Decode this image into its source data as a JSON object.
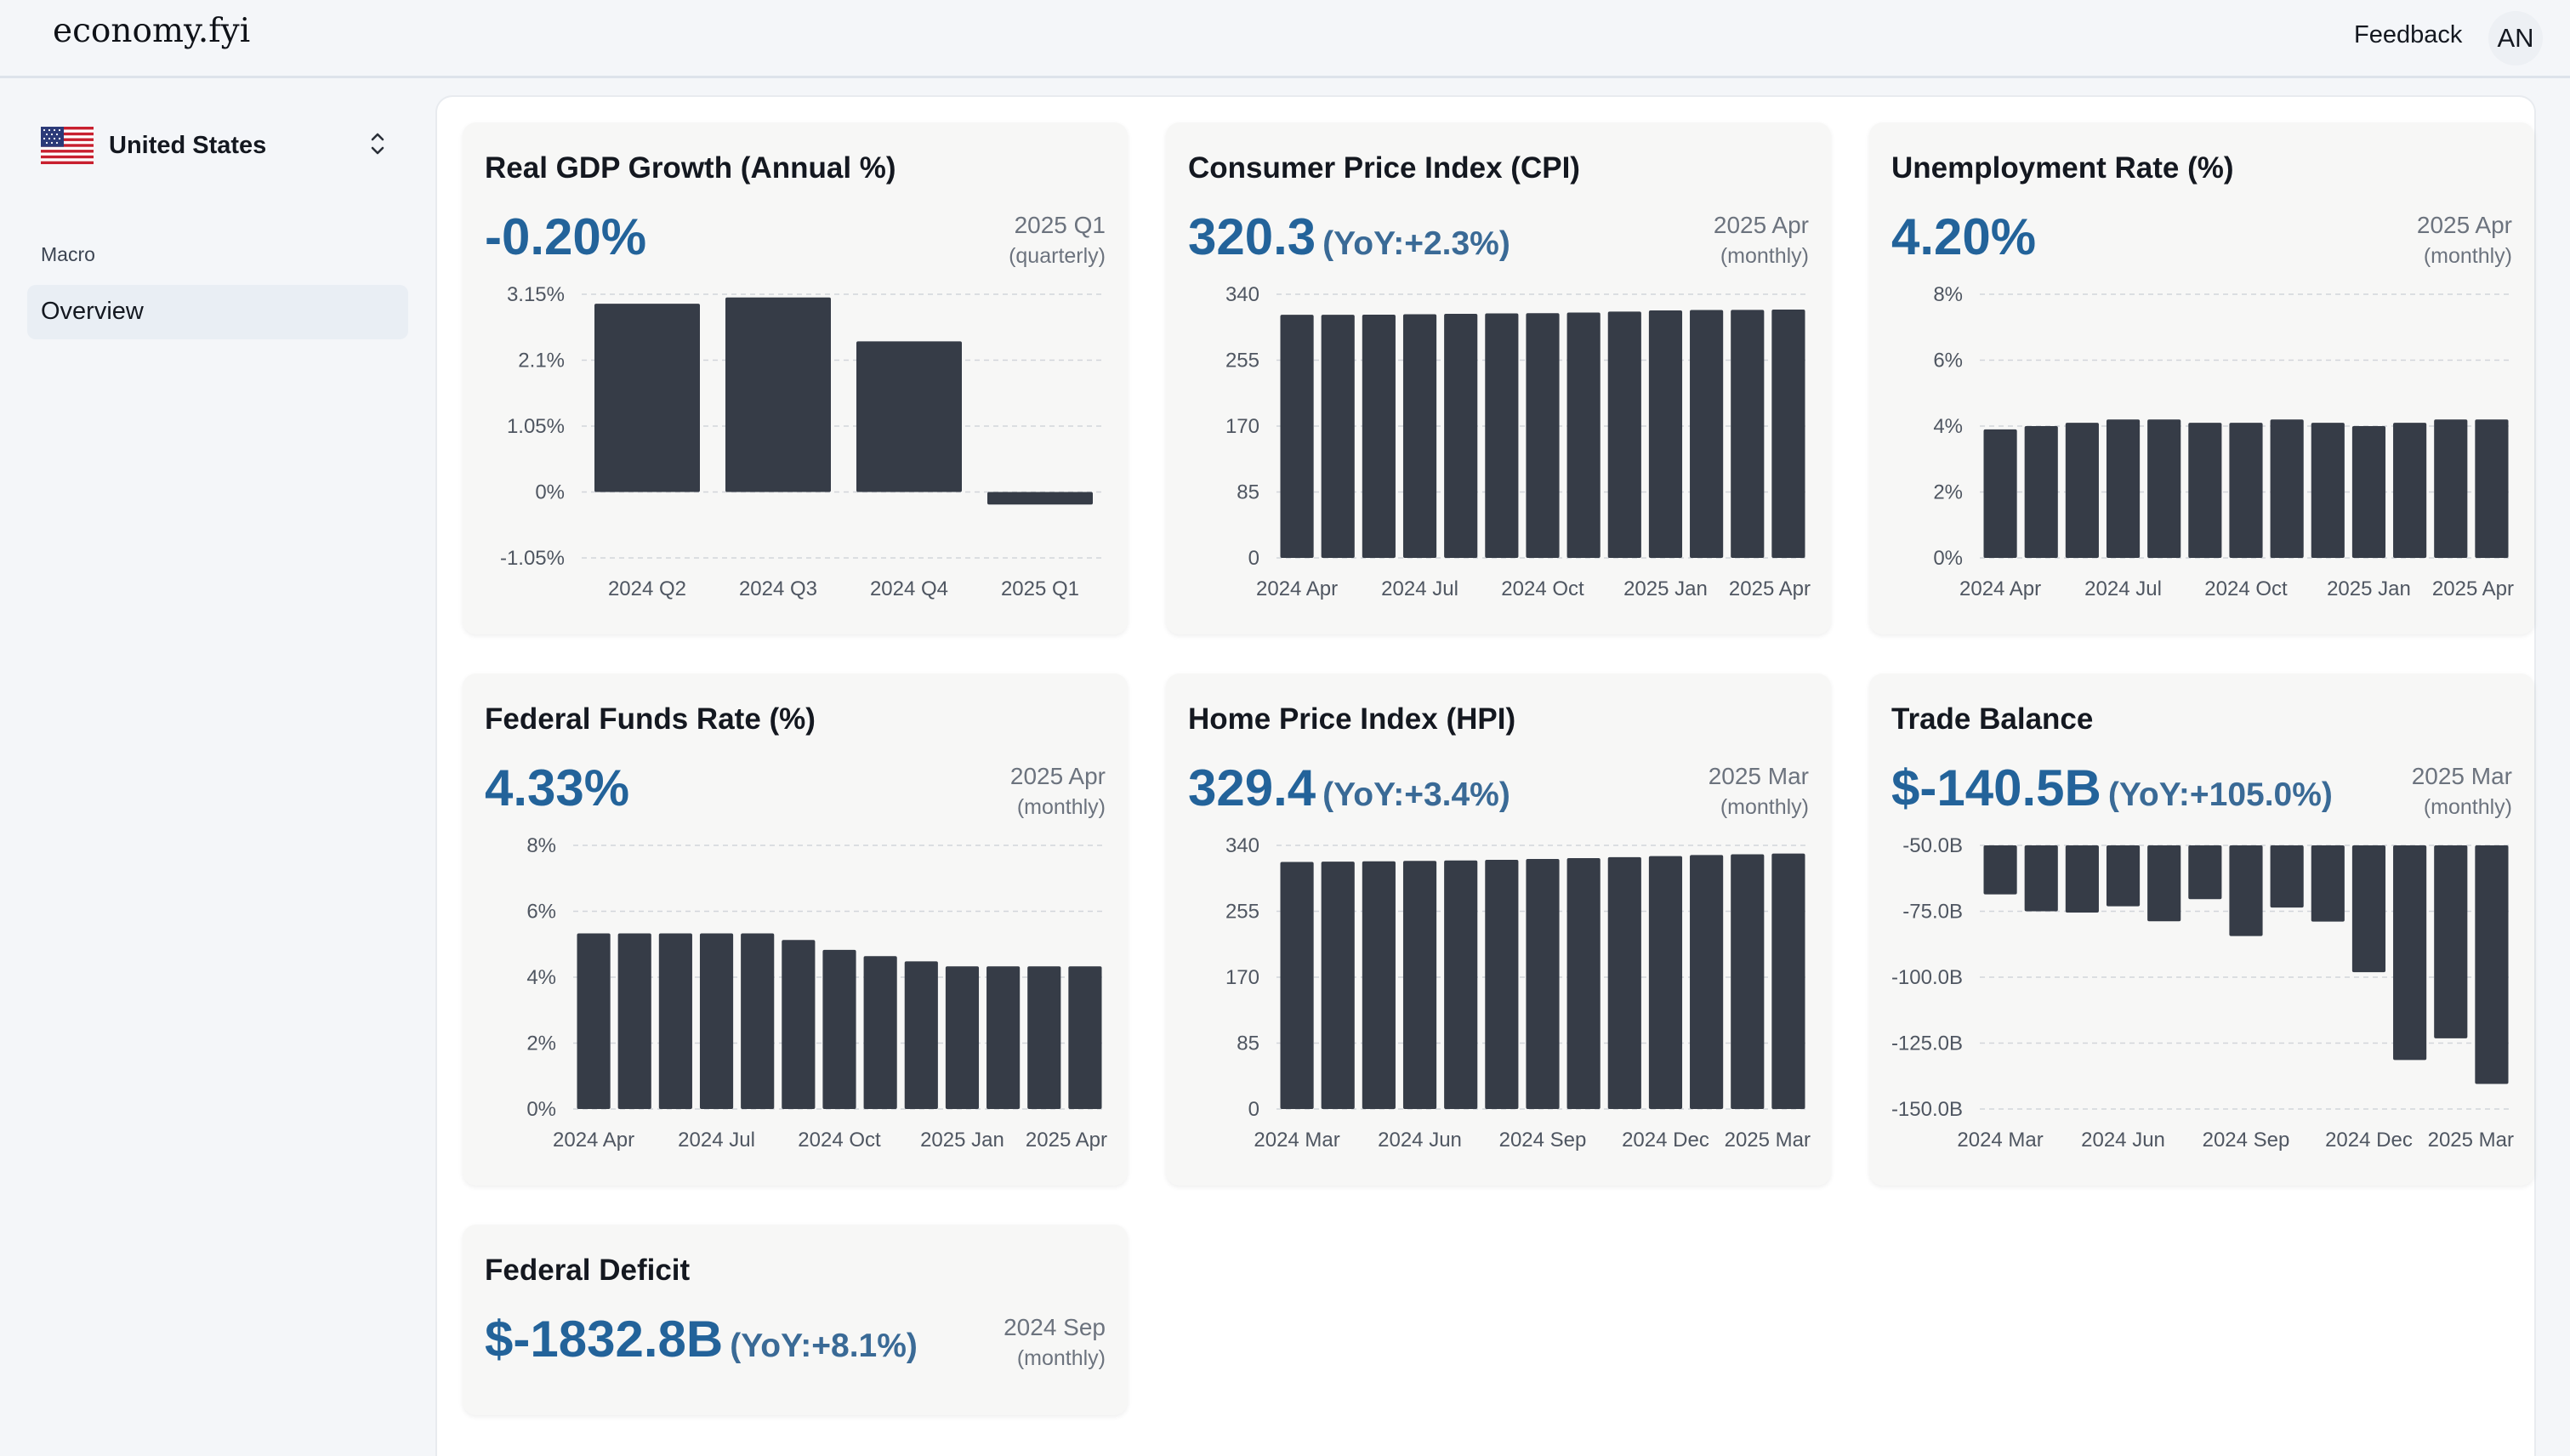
{
  "app": {
    "logo": "economy.fyi",
    "feedback_label": "Feedback",
    "avatar_initials": "AN"
  },
  "sidebar": {
    "country": "United States",
    "section_label": "Macro",
    "nav_items": [
      {
        "label": "Overview",
        "active": true
      }
    ]
  },
  "colors": {
    "accent": "#23639a",
    "bar": "#363c47",
    "card_bg": "#f7f7f6"
  },
  "cards": [
    {
      "title": "Real GDP Growth (Annual %)",
      "value": "-0.20%",
      "yoy": "",
      "period": "2025 Q1",
      "frequency": "(quarterly)"
    },
    {
      "title": "Consumer Price Index (CPI)",
      "value": "320.3",
      "yoy": "(YoY:+2.3%)",
      "period": "2025 Apr",
      "frequency": "(monthly)"
    },
    {
      "title": "Unemployment Rate (%)",
      "value": "4.20%",
      "yoy": "",
      "period": "2025 Apr",
      "frequency": "(monthly)"
    },
    {
      "title": "Federal Funds Rate (%)",
      "value": "4.33%",
      "yoy": "",
      "period": "2025 Apr",
      "frequency": "(monthly)"
    },
    {
      "title": "Home Price Index (HPI)",
      "value": "329.4",
      "yoy": "(YoY:+3.4%)",
      "period": "2025 Mar",
      "frequency": "(monthly)"
    },
    {
      "title": "Trade Balance",
      "value": "$-140.5B",
      "yoy": "(YoY:+105.0%)",
      "period": "2025 Mar",
      "frequency": "(monthly)"
    },
    {
      "title": "Federal Deficit",
      "value": "$-1832.8B",
      "yoy": "(YoY:+8.1%)",
      "period": "2024 Sep",
      "frequency": "(monthly)"
    }
  ],
  "chart_data": [
    {
      "type": "bar",
      "title": "Real GDP Growth (Annual %)",
      "categories": [
        "2024 Q2",
        "2024 Q3",
        "2024 Q4",
        "2025 Q1"
      ],
      "values": [
        3.0,
        3.1,
        2.4,
        -0.2
      ],
      "ylim": [
        -1.05,
        3.15
      ],
      "yticks": [
        3.15,
        2.1,
        1.05,
        0,
        -1.05
      ],
      "ytick_labels": [
        "3.15%",
        "2.1%",
        "1.05%",
        "0%",
        "-1.05%"
      ],
      "xtick_labels": [
        "2024 Q2",
        "2024 Q3",
        "2024 Q4",
        "2025 Q1"
      ],
      "xtick_index": [
        0,
        1,
        2,
        3
      ],
      "grid": true
    },
    {
      "type": "bar",
      "title": "Consumer Price Index (CPI)",
      "categories": [
        "2024 Apr",
        "2024 May",
        "2024 Jun",
        "2024 Jul",
        "2024 Aug",
        "2024 Sep",
        "2024 Oct",
        "2024 Nov",
        "2024 Dec",
        "2025 Jan",
        "2025 Feb",
        "2025 Mar",
        "2025 Apr"
      ],
      "values": [
        313.5,
        313.6,
        313.7,
        314.2,
        314.8,
        315.3,
        315.6,
        316.4,
        317.6,
        319.1,
        319.7,
        319.8,
        320.3
      ],
      "ylim": [
        0,
        340
      ],
      "yticks": [
        340,
        255,
        170,
        85,
        0
      ],
      "ytick_labels": [
        "340",
        "255",
        "170",
        "85",
        "0"
      ],
      "xtick_labels": [
        "2024 Apr",
        "2024 Jul",
        "2024 Oct",
        "2025 Jan",
        "2025 Apr"
      ],
      "xtick_index": [
        0,
        3,
        6,
        9,
        12
      ],
      "grid": true
    },
    {
      "type": "bar",
      "title": "Unemployment Rate (%)",
      "categories": [
        "2024 Apr",
        "2024 May",
        "2024 Jun",
        "2024 Jul",
        "2024 Aug",
        "2024 Sep",
        "2024 Oct",
        "2024 Nov",
        "2024 Dec",
        "2025 Jan",
        "2025 Feb",
        "2025 Mar",
        "2025 Apr"
      ],
      "values": [
        3.9,
        4.0,
        4.1,
        4.2,
        4.2,
        4.1,
        4.1,
        4.2,
        4.1,
        4.0,
        4.1,
        4.2,
        4.2
      ],
      "ylim": [
        0,
        8
      ],
      "yticks": [
        8,
        6,
        4,
        2,
        0
      ],
      "ytick_labels": [
        "8%",
        "6%",
        "4%",
        "2%",
        "0%"
      ],
      "xtick_labels": [
        "2024 Apr",
        "2024 Jul",
        "2024 Oct",
        "2025 Jan",
        "2025 Apr"
      ],
      "xtick_index": [
        0,
        3,
        6,
        9,
        12
      ],
      "grid": true
    },
    {
      "type": "bar",
      "title": "Federal Funds Rate (%)",
      "categories": [
        "2024 Apr",
        "2024 May",
        "2024 Jun",
        "2024 Jul",
        "2024 Aug",
        "2024 Sep",
        "2024 Oct",
        "2024 Nov",
        "2024 Dec",
        "2025 Jan",
        "2025 Feb",
        "2025 Mar",
        "2025 Apr"
      ],
      "values": [
        5.33,
        5.33,
        5.33,
        5.33,
        5.33,
        5.13,
        4.83,
        4.64,
        4.48,
        4.33,
        4.33,
        4.33,
        4.33
      ],
      "ylim": [
        0,
        8
      ],
      "yticks": [
        8,
        6,
        4,
        2,
        0
      ],
      "ytick_labels": [
        "8%",
        "6%",
        "4%",
        "2%",
        "0%"
      ],
      "xtick_labels": [
        "2024 Apr",
        "2024 Jul",
        "2024 Oct",
        "2025 Jan",
        "2025 Apr"
      ],
      "xtick_index": [
        0,
        3,
        6,
        9,
        12
      ],
      "grid": true
    },
    {
      "type": "bar",
      "title": "Home Price Index (HPI)",
      "categories": [
        "2024 Mar",
        "2024 Apr",
        "2024 May",
        "2024 Jun",
        "2024 Jul",
        "2024 Aug",
        "2024 Sep",
        "2024 Oct",
        "2024 Nov",
        "2024 Dec",
        "2025 Jan",
        "2025 Feb",
        "2025 Mar"
      ],
      "values": [
        318.6,
        319.0,
        319.5,
        320.0,
        320.5,
        321.3,
        322.5,
        323.5,
        324.8,
        326.2,
        327.5,
        328.5,
        329.4
      ],
      "ylim": [
        0,
        340
      ],
      "yticks": [
        340,
        255,
        170,
        85,
        0
      ],
      "ytick_labels": [
        "340",
        "255",
        "170",
        "85",
        "0"
      ],
      "xtick_labels": [
        "2024 Mar",
        "2024 Jun",
        "2024 Sep",
        "2024 Dec",
        "2025 Mar"
      ],
      "xtick_index": [
        0,
        3,
        6,
        9,
        12
      ],
      "grid": true
    },
    {
      "type": "bar",
      "title": "Trade Balance",
      "categories": [
        "2024 Mar",
        "2024 Apr",
        "2024 May",
        "2024 Jun",
        "2024 Jul",
        "2024 Aug",
        "2024 Sep",
        "2024 Oct",
        "2024 Nov",
        "2024 Dec",
        "2025 Jan",
        "2025 Feb",
        "2025 Mar"
      ],
      "values": [
        -68.6,
        -75.0,
        -75.5,
        -73.1,
        -78.8,
        -70.4,
        -84.4,
        -73.6,
        -78.9,
        -98.1,
        -131.4,
        -123.2,
        -140.5
      ],
      "ylim": [
        -150,
        -50
      ],
      "yticks": [
        -50,
        -75,
        -100,
        -125,
        -150
      ],
      "ytick_labels": [
        "-50.0B",
        "-75.0B",
        "-100.0B",
        "-125.0B",
        "-150.0B"
      ],
      "xtick_labels": [
        "2024 Mar",
        "2024 Jun",
        "2024 Sep",
        "2024 Dec",
        "2025 Mar"
      ],
      "xtick_index": [
        0,
        3,
        6,
        9,
        12
      ],
      "grid": true
    }
  ]
}
